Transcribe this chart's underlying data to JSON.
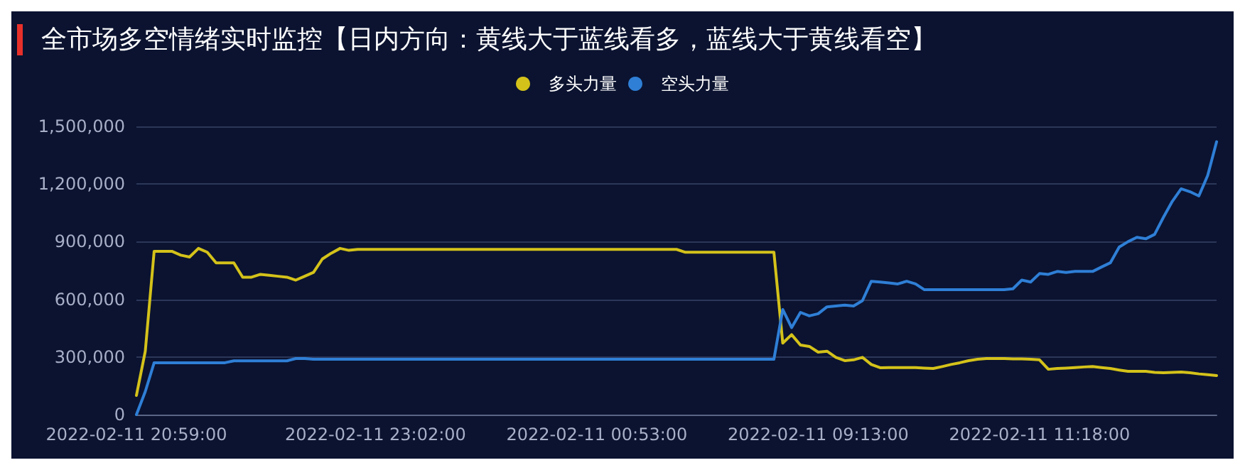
{
  "chart_data": {
    "type": "line",
    "title": "全市场多空情绪实时监控【日内方向：黄线大于蓝线看多，蓝线大于黄线看空】",
    "categories": [
      "2022-02-11 20:59:00",
      null,
      null,
      null,
      null,
      null,
      null,
      null,
      null,
      null,
      null,
      null,
      null,
      null,
      null,
      null,
      null,
      null,
      null,
      null,
      null,
      null,
      null,
      null,
      null,
      null,
      null,
      "2022-02-11 23:02:00",
      null,
      null,
      null,
      null,
      null,
      null,
      null,
      null,
      null,
      null,
      null,
      null,
      null,
      null,
      null,
      null,
      null,
      null,
      null,
      null,
      null,
      null,
      null,
      null,
      "2022-02-11 00:53:00",
      null,
      null,
      null,
      null,
      null,
      null,
      null,
      null,
      null,
      null,
      null,
      null,
      null,
      null,
      null,
      null,
      null,
      null,
      null,
      null,
      null,
      null,
      null,
      null,
      "2022-02-11 09:13:00",
      null,
      null,
      null,
      null,
      null,
      null,
      null,
      null,
      null,
      null,
      null,
      null,
      null,
      null,
      null,
      null,
      null,
      null,
      null,
      null,
      null,
      null,
      null,
      null,
      "2022-02-11 11:18:00",
      null,
      null,
      null,
      null,
      null,
      null,
      null,
      null,
      null,
      null,
      null,
      null,
      null,
      null,
      null,
      null,
      null,
      null,
      null,
      null
    ],
    "series": [
      {
        "name": "多头力量",
        "color": "#d4c21a",
        "values": [
          100000,
          330000,
          850000,
          850000,
          850000,
          830000,
          820000,
          865000,
          845000,
          790000,
          790000,
          790000,
          715000,
          715000,
          730000,
          725000,
          720000,
          715000,
          700000,
          720000,
          740000,
          810000,
          840000,
          865000,
          855000,
          860000,
          860000,
          860000,
          860000,
          860000,
          860000,
          860000,
          860000,
          860000,
          860000,
          860000,
          860000,
          860000,
          860000,
          860000,
          860000,
          860000,
          860000,
          860000,
          860000,
          860000,
          860000,
          860000,
          860000,
          860000,
          860000,
          860000,
          860000,
          860000,
          860000,
          860000,
          860000,
          860000,
          860000,
          860000,
          860000,
          860000,
          845000,
          845000,
          845000,
          845000,
          845000,
          845000,
          845000,
          845000,
          845000,
          845000,
          845000,
          372000,
          416000,
          362000,
          355000,
          325000,
          330000,
          298000,
          281000,
          285000,
          298000,
          261000,
          244000,
          245000,
          245000,
          245000,
          245000,
          242000,
          240000,
          250000,
          261000,
          270000,
          281000,
          288000,
          292000,
          292000,
          292000,
          290000,
          290000,
          288000,
          285000,
          236000,
          240000,
          242000,
          245000,
          248000,
          250000,
          245000,
          240000,
          232000,
          225000,
          225000,
          225000,
          220000,
          218000,
          220000,
          222000,
          218000,
          212000,
          208000,
          203000
        ]
      },
      {
        "name": "空头力量",
        "color": "#2f7fd6",
        "values": [
          0,
          120000,
          270000,
          270000,
          270000,
          270000,
          270000,
          270000,
          270000,
          270000,
          270000,
          280000,
          280000,
          280000,
          280000,
          280000,
          280000,
          280000,
          292000,
          292000,
          288000,
          288000,
          288000,
          288000,
          288000,
          288000,
          288000,
          288000,
          288000,
          288000,
          288000,
          288000,
          288000,
          288000,
          288000,
          288000,
          288000,
          288000,
          288000,
          288000,
          288000,
          288000,
          288000,
          288000,
          288000,
          288000,
          288000,
          288000,
          288000,
          288000,
          288000,
          288000,
          288000,
          288000,
          288000,
          288000,
          288000,
          288000,
          288000,
          288000,
          288000,
          288000,
          288000,
          288000,
          288000,
          288000,
          288000,
          288000,
          288000,
          288000,
          288000,
          288000,
          288000,
          547000,
          453000,
          532000,
          514000,
          525000,
          561000,
          565000,
          570000,
          565000,
          593000,
          694000,
          690000,
          685000,
          680000,
          694000,
          680000,
          650000,
          650000,
          650000,
          650000,
          650000,
          650000,
          650000,
          650000,
          650000,
          650000,
          655000,
          700000,
          690000,
          734000,
          730000,
          745000,
          740000,
          745000,
          745000,
          745000,
          768000,
          790000,
          872000,
          900000,
          923000,
          915000,
          938000,
          1027000,
          1110000,
          1175000,
          1160000,
          1138000,
          1245000,
          1420000
        ]
      }
    ],
    "ylim": [
      0,
      1500000
    ],
    "yticks": [
      {
        "value": 0,
        "label": "0"
      },
      {
        "value": 300000,
        "label": "300,000"
      },
      {
        "value": 600000,
        "label": "600,000"
      },
      {
        "value": 900000,
        "label": "900,000"
      },
      {
        "value": 1200000,
        "label": "1,200,000"
      },
      {
        "value": 1500000,
        "label": "1,500,000"
      }
    ],
    "grid": "y",
    "legend": "top",
    "marker": "none",
    "line_style": "solid"
  }
}
